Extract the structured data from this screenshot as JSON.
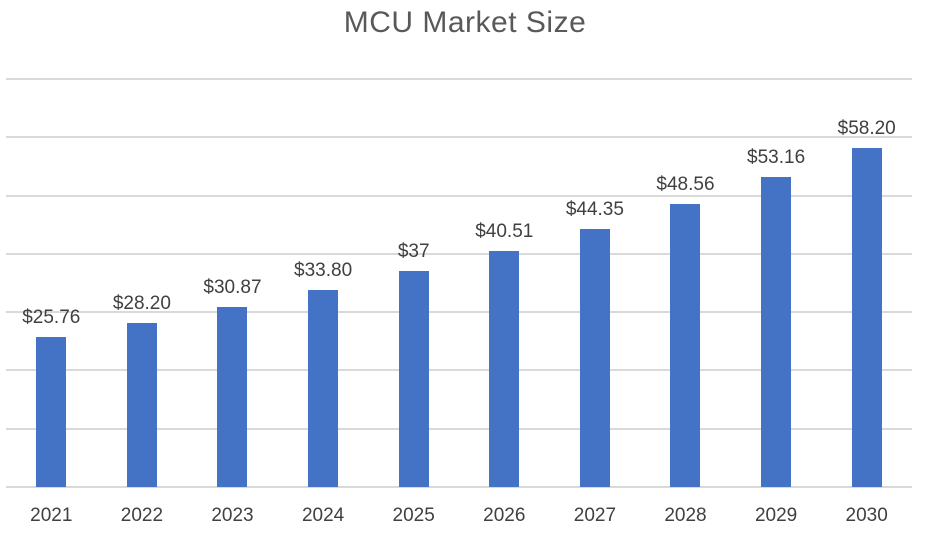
{
  "title": "MCU Market Size",
  "colors": {
    "bar": "#4472c4",
    "gridline": "#d9d9d9",
    "title_text": "#595959",
    "label_text": "#404040",
    "background": "#ffffff"
  },
  "chart_data": {
    "type": "bar",
    "title": "MCU Market Size",
    "categories": [
      "2021",
      "2022",
      "2023",
      "2024",
      "2025",
      "2026",
      "2027",
      "2028",
      "2029",
      "2030"
    ],
    "values": [
      25.76,
      28.2,
      30.87,
      33.8,
      37,
      40.51,
      44.35,
      48.56,
      53.16,
      58.2
    ],
    "data_labels": [
      "$25.76",
      "$28.20",
      "$30.87",
      "$33.80",
      "$37",
      "$40.51",
      "$44.35",
      "$48.56",
      "$53.16",
      "$58.20"
    ],
    "xlabel": "",
    "ylabel": "",
    "ylim": [
      0,
      70
    ],
    "gridline_step": 10,
    "grid": true,
    "legend": false,
    "y_axis_labels_visible": false
  }
}
